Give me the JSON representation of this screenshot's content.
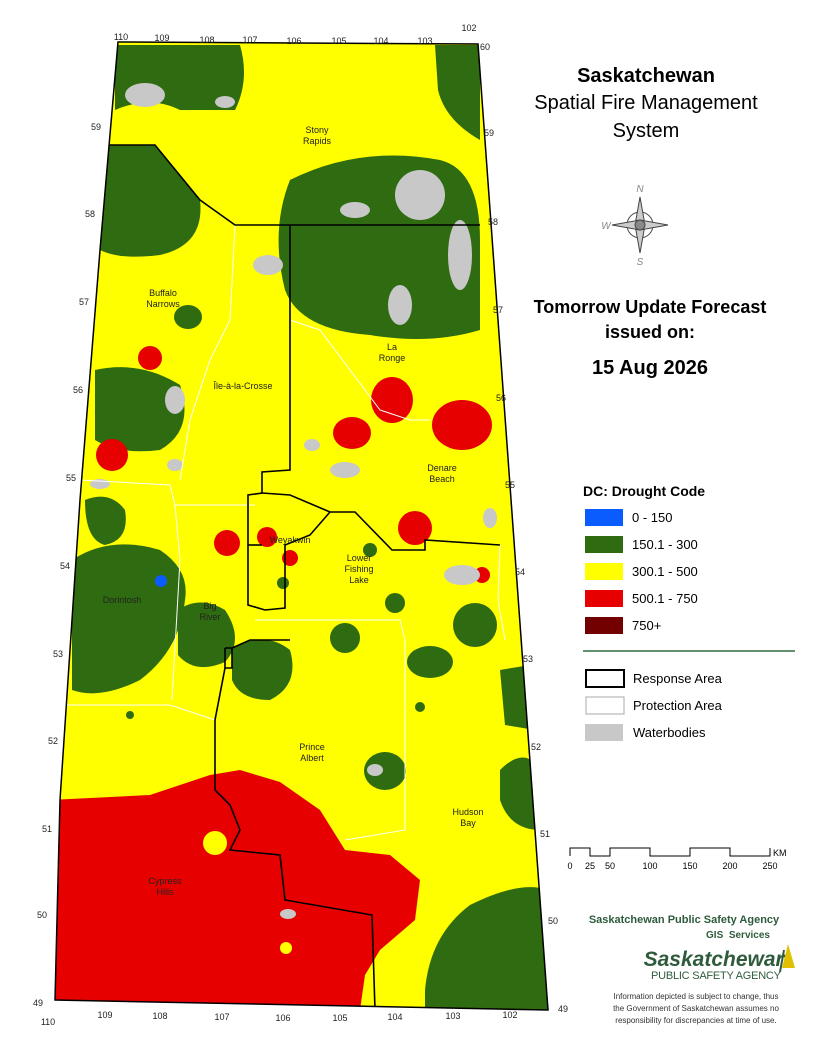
{
  "header": {
    "title": "Saskatchewan",
    "subtitle_lines": [
      "Spatial Fire Management",
      "System"
    ]
  },
  "compass": [
    "N",
    "W",
    "S"
  ],
  "forecast": {
    "line1": "Tomorrow Update Forecast",
    "line2": "issued on:",
    "date": "15 Aug 2026"
  },
  "legend": {
    "title": "DC: Drought Code",
    "classes": [
      "0 - 150",
      "150.1 - 300",
      "300.1 - 500",
      "500.1 - 750",
      "750+"
    ],
    "boundaries": [
      "Response Area",
      "Protection Area",
      "Waterbodies"
    ]
  },
  "scale_bar": {
    "labels": [
      "0",
      "25",
      "50",
      "100",
      "150",
      "200",
      "250"
    ],
    "unit": "KM"
  },
  "agency": {
    "name": "Saskatchewan Public Safety Agency",
    "unit": "GIS  Services"
  },
  "logo": {
    "name": "Saskatchewan",
    "sub": "PUBLIC SAFETY AGENCY"
  },
  "disclaimer": [
    "Information depicted is subject to change, thus",
    "the Government of Saskatchewan assumes no",
    "responsibility for discrepancies at time of use."
  ],
  "places": [
    [
      "Stony",
      "Rapids"
    ],
    [
      "Buffalo",
      "Narrows"
    ],
    [
      "Île-à-la-Crosse"
    ],
    [
      "La",
      "Ronge"
    ],
    [
      "Denare",
      "Beach"
    ],
    [
      "Weyakwin"
    ],
    [
      "Lower",
      "Fishing",
      "Lake"
    ],
    [
      "Dorintosh"
    ],
    [
      "Big",
      "River"
    ],
    [
      "Prince",
      "Albert"
    ],
    [
      "Hudson",
      "Bay"
    ],
    [
      "Cypress",
      "Hills"
    ]
  ],
  "graticule": {
    "top": [
      "110",
      "109",
      "108",
      "107",
      "106",
      "105",
      "104",
      "103",
      "102"
    ],
    "bottom": [
      "110",
      "109",
      "108",
      "107",
      "106",
      "105",
      "104",
      "103",
      "102"
    ],
    "left": [
      "59",
      "58",
      "57",
      "56",
      "55",
      "54",
      "53",
      "52",
      "51",
      "50",
      "49"
    ],
    "right": [
      "60",
      "59",
      "58",
      "57",
      "56",
      "55",
      "54",
      "53",
      "52",
      "51",
      "50",
      "49"
    ]
  }
}
